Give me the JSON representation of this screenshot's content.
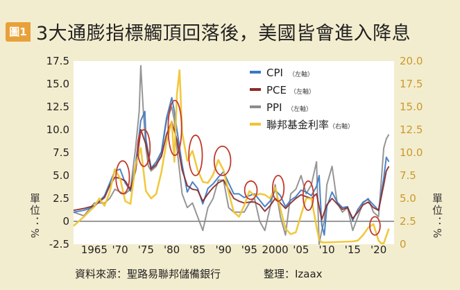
{
  "figure": {
    "badge": "圖1",
    "title": "3大通膨指標觸頂回落後，美國皆會進入降息",
    "source": "資料來源：聖路易聯邦儲備銀行",
    "credit": "整理：Izaax",
    "unit_left": "單位：%",
    "unit_right": "單位：%"
  },
  "colors": {
    "cpi": "#3a78c3",
    "pce": "#8b2a2a",
    "ppi": "#8c8c8c",
    "fed": "#f0c430",
    "circle": "#c0392b",
    "panel": "#ffffff",
    "axis_text": "#c9992a"
  },
  "chart_data": {
    "type": "line",
    "xlim": [
      1961,
      2023
    ],
    "ylim_left": [
      -2.5,
      17.5
    ],
    "ylim_right": [
      0,
      20
    ],
    "left_ticks": [
      "17.5",
      "15.0",
      "12.5",
      "10.0",
      "7.5",
      "5.0",
      "2.5",
      "0",
      "-2.5"
    ],
    "right_ticks": [
      "20.0",
      "17.5",
      "15.0",
      "12.5",
      "10.0",
      "7.5",
      "5.0",
      "2.5",
      "0"
    ],
    "x_ticks": [
      {
        "year": 1965,
        "label": "1965"
      },
      {
        "year": 1970,
        "label": "'70"
      },
      {
        "year": 1975,
        "label": "'75"
      },
      {
        "year": 1980,
        "label": "'80"
      },
      {
        "year": 1985,
        "label": "'85"
      },
      {
        "year": 1990,
        "label": "'90"
      },
      {
        "year": 1995,
        "label": "'95"
      },
      {
        "year": 2000,
        "label": "2000"
      },
      {
        "year": 2005,
        "label": "'05"
      },
      {
        "year": 2010,
        "label": "'10"
      },
      {
        "year": 2015,
        "label": "'15"
      },
      {
        "year": 2020,
        "label": "'20"
      }
    ],
    "legend": [
      {
        "key": "cpi",
        "label": "CPI",
        "note": "（左軸）"
      },
      {
        "key": "pce",
        "label": "PCE",
        "note": "（左軸）"
      },
      {
        "key": "ppi",
        "label": "PPI",
        "note": "（左軸）"
      },
      {
        "key": "fed",
        "label": "聯邦基金利率",
        "note": "（右軸）"
      }
    ],
    "series": [
      {
        "key": "ppi",
        "name": "PPI",
        "axis": "left",
        "x": [
          1961,
          1963,
          1965,
          1967,
          1968,
          1969,
          1970,
          1971,
          1972,
          1973,
          1973.7,
          1974,
          1974.5,
          1975,
          1975.5,
          1976,
          1977,
          1978,
          1979,
          1980,
          1980.5,
          1981,
          1982,
          1983,
          1984,
          1985,
          1986,
          1987,
          1988,
          1989,
          1990,
          1991,
          1992,
          1993,
          1994,
          1995,
          1996,
          1997,
          1998,
          1999,
          2000,
          2001,
          2002,
          2003,
          2004,
          2005,
          2006,
          2007,
          2008,
          2008.5,
          2009,
          2009.5,
          2010,
          2011,
          2012,
          2013,
          2014,
          2015,
          2016,
          2017,
          2018,
          2019,
          2020,
          2021,
          2021.5,
          2022
        ],
        "y": [
          1.0,
          0.6,
          2.0,
          2.0,
          2.5,
          3.5,
          3.2,
          3.0,
          3.5,
          8.0,
          12.0,
          17.0,
          12.0,
          8.0,
          6.0,
          5.5,
          6.0,
          7.5,
          11.0,
          12.5,
          11.0,
          8.0,
          3.0,
          1.5,
          2.0,
          0.5,
          -1.0,
          1.5,
          2.5,
          4.5,
          4.5,
          1.5,
          1.0,
          1.0,
          1.0,
          2.0,
          2.5,
          0.0,
          -1.0,
          1.5,
          4.0,
          0.5,
          -1.5,
          3.0,
          3.5,
          5.0,
          3.0,
          4.0,
          6.5,
          -2.5,
          -1.0,
          0.0,
          4.0,
          6.0,
          2.0,
          1.0,
          1.5,
          -1.0,
          0.5,
          2.0,
          2.5,
          1.0,
          0.5,
          8.0,
          9.0,
          9.5
        ]
      },
      {
        "key": "cpi",
        "name": "CPI",
        "axis": "left",
        "x": [
          1961,
          1963,
          1965,
          1967,
          1968,
          1969,
          1970,
          1971,
          1972,
          1973,
          1974,
          1974.8,
          1975,
          1976,
          1977,
          1978,
          1979,
          1980,
          1980.5,
          1981,
          1982,
          1983,
          1984,
          1985,
          1986,
          1987,
          1988,
          1989,
          1990,
          1991,
          1992,
          1993,
          1994,
          1995,
          1996,
          1997,
          1998,
          1999,
          2000,
          2001,
          2002,
          2003,
          2004,
          2005,
          2006,
          2007,
          2008,
          2008.5,
          2009,
          2009.5,
          2010,
          2011,
          2012,
          2013,
          2014,
          2015,
          2016,
          2017,
          2018,
          2019,
          2020,
          2021,
          2021.5,
          2022
        ],
        "y": [
          1.0,
          1.2,
          1.6,
          2.8,
          4.2,
          5.5,
          5.7,
          4.2,
          3.3,
          6.2,
          11.0,
          12.0,
          9.0,
          5.8,
          6.5,
          7.6,
          11.3,
          13.5,
          12.0,
          10.0,
          6.2,
          3.2,
          4.3,
          3.6,
          1.9,
          3.6,
          4.1,
          4.8,
          5.4,
          4.2,
          3.0,
          3.0,
          2.6,
          2.8,
          3.0,
          2.3,
          1.6,
          2.2,
          3.4,
          2.8,
          1.6,
          2.3,
          2.7,
          3.4,
          3.2,
          2.8,
          3.8,
          5.0,
          -0.4,
          -1.5,
          1.6,
          3.2,
          2.1,
          1.5,
          1.6,
          0.1,
          1.3,
          2.1,
          2.4,
          1.8,
          1.2,
          4.7,
          7.0,
          6.5
        ]
      },
      {
        "key": "pce",
        "name": "PCE",
        "axis": "left",
        "x": [
          1961,
          1963,
          1965,
          1967,
          1968,
          1969,
          1970,
          1971,
          1972,
          1973,
          1974,
          1975,
          1976,
          1977,
          1978,
          1979,
          1980,
          1981,
          1982,
          1983,
          1984,
          1985,
          1986,
          1987,
          1988,
          1989,
          1990,
          1991,
          1992,
          1993,
          1994,
          1995,
          1996,
          1997,
          1998,
          1999,
          2000,
          2001,
          2002,
          2003,
          2004,
          2005,
          2006,
          2007,
          2008,
          2009,
          2010,
          2011,
          2012,
          2013,
          2014,
          2015,
          2016,
          2017,
          2018,
          2019,
          2020,
          2021,
          2021.5,
          2022
        ],
        "y": [
          1.2,
          1.4,
          1.7,
          2.6,
          3.9,
          4.8,
          4.7,
          4.4,
          3.5,
          5.5,
          10.0,
          8.4,
          5.7,
          6.2,
          7.1,
          9.5,
          10.9,
          8.9,
          5.6,
          3.9,
          3.5,
          3.4,
          2.2,
          3.0,
          3.7,
          4.2,
          4.5,
          3.5,
          2.5,
          2.2,
          2.0,
          2.1,
          2.1,
          1.8,
          1.1,
          1.7,
          2.5,
          2.0,
          1.4,
          2.0,
          2.5,
          2.9,
          2.7,
          2.5,
          3.0,
          0.2,
          1.8,
          2.5,
          1.9,
          1.3,
          1.5,
          0.3,
          1.0,
          1.8,
          2.1,
          1.5,
          1.2,
          4.0,
          5.5,
          6.0
        ]
      },
      {
        "key": "fed",
        "name": "聯邦基金利率",
        "axis": "right",
        "x": [
          1961,
          1963,
          1965,
          1966,
          1967,
          1968,
          1969,
          1970,
          1971,
          1972,
          1973,
          1974,
          1975,
          1976,
          1977,
          1978,
          1979,
          1980,
          1980.5,
          1981,
          1981.5,
          1982,
          1983,
          1984,
          1985,
          1986,
          1987,
          1988,
          1989,
          1990,
          1991,
          1992,
          1993,
          1994,
          1995,
          1996,
          1997,
          1998,
          1999,
          2000,
          2001,
          2002,
          2003,
          2004,
          2005,
          2006,
          2007,
          2008,
          2008.5,
          2009,
          2010,
          2015,
          2016,
          2017,
          2018,
          2019,
          2020,
          2020.5,
          2021,
          2022
        ],
        "y": [
          2.0,
          3.0,
          4.1,
          5.0,
          4.2,
          5.7,
          8.2,
          7.2,
          4.7,
          4.4,
          8.7,
          10.5,
          5.8,
          5.0,
          5.5,
          7.9,
          11.2,
          13.4,
          9.0,
          16.4,
          19.0,
          12.2,
          9.1,
          10.2,
          8.1,
          6.8,
          6.7,
          7.6,
          9.2,
          8.1,
          5.7,
          3.5,
          3.0,
          4.2,
          5.8,
          5.3,
          5.5,
          5.4,
          5.0,
          6.2,
          3.9,
          1.7,
          1.1,
          1.3,
          3.2,
          5.0,
          5.0,
          1.9,
          0.5,
          0.2,
          0.2,
          0.3,
          0.4,
          1.0,
          1.8,
          2.2,
          0.4,
          0.1,
          0.1,
          1.7
        ]
      }
    ],
    "highlights": [
      {
        "x": 1970.5,
        "y": 4.8,
        "rx_years": 1.3,
        "ry_units": 1.8
      },
      {
        "x": 1974.6,
        "y": 8.0,
        "rx_years": 1.2,
        "ry_units": 2.0
      },
      {
        "x": 1980.6,
        "y": 10.2,
        "rx_years": 1.3,
        "ry_units": 3.0
      },
      {
        "x": 1984.6,
        "y": 7.2,
        "rx_years": 1.3,
        "ry_units": 2.2
      },
      {
        "x": 1989.8,
        "y": 6.6,
        "rx_years": 1.6,
        "ry_units": 1.6
      },
      {
        "x": 1995.3,
        "y": 3.4,
        "rx_years": 1.2,
        "ry_units": 1.0
      },
      {
        "x": 2000.6,
        "y": 3.6,
        "rx_years": 1.1,
        "ry_units": 1.4
      },
      {
        "x": 2006.4,
        "y": 2.8,
        "rx_years": 1.0,
        "ry_units": 1.6
      },
      {
        "x": 2019.3,
        "y": -0.5,
        "rx_years": 1.0,
        "ry_units": 1.0
      }
    ]
  }
}
